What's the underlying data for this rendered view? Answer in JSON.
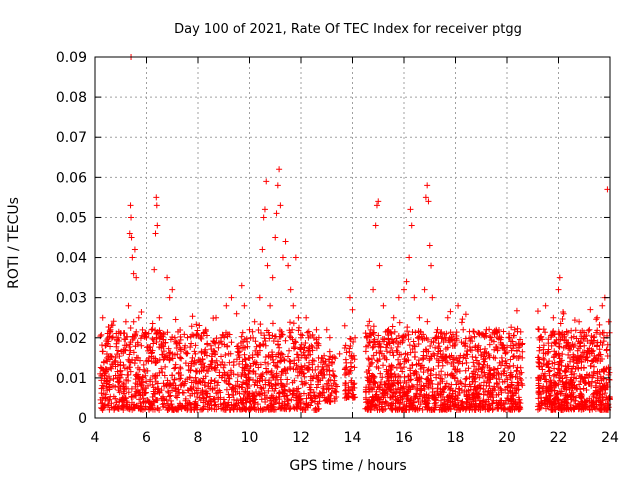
{
  "chart_data": {
    "type": "scatter",
    "title": "Day 100 of 2021, Rate Of TEC Index for receiver ptgg",
    "xlabel": "GPS time / hours",
    "ylabel": "ROTI / TECUs",
    "xlim": [
      4,
      24
    ],
    "ylim": [
      0,
      0.09
    ],
    "xticks": [
      4,
      6,
      8,
      10,
      12,
      14,
      16,
      18,
      20,
      22,
      24
    ],
    "yticks": [
      0,
      0.01,
      0.02,
      0.03,
      0.04,
      0.05,
      0.06,
      0.07,
      0.08,
      0.09
    ],
    "xtick_labels": [
      "4",
      "6",
      "8",
      "10",
      "12",
      "14",
      "16",
      "18",
      "20",
      "22",
      "24"
    ],
    "ytick_labels": [
      "0",
      "0.01",
      "0.02",
      "0.03",
      "0.04",
      "0.05",
      "0.06",
      "0.07",
      "0.08",
      "0.09"
    ],
    "grid": true,
    "marker": "plus",
    "color": "#ff0000",
    "points": [
      [
        4.2,
        0.011
      ],
      [
        4.3,
        0.025
      ],
      [
        4.35,
        0.005
      ],
      [
        4.4,
        0.018
      ],
      [
        4.5,
        0.012
      ],
      [
        4.6,
        0.022
      ],
      [
        4.7,
        0.008
      ],
      [
        4.8,
        0.015
      ],
      [
        4.9,
        0.02
      ],
      [
        5.0,
        0.01
      ],
      [
        5.1,
        0.017
      ],
      [
        5.2,
        0.024
      ],
      [
        5.3,
        0.028
      ],
      [
        5.35,
        0.046
      ],
      [
        5.38,
        0.053
      ],
      [
        5.4,
        0.05
      ],
      [
        5.42,
        0.045
      ],
      [
        5.45,
        0.04
      ],
      [
        5.5,
        0.036
      ],
      [
        5.55,
        0.042
      ],
      [
        5.6,
        0.035
      ],
      [
        5.4,
        0.09
      ],
      [
        5.7,
        0.025
      ],
      [
        5.8,
        0.018
      ],
      [
        5.9,
        0.012
      ],
      [
        6.0,
        0.02
      ],
      [
        6.1,
        0.015
      ],
      [
        6.2,
        0.022
      ],
      [
        6.3,
        0.037
      ],
      [
        6.35,
        0.046
      ],
      [
        6.38,
        0.055
      ],
      [
        6.4,
        0.053
      ],
      [
        6.42,
        0.048
      ],
      [
        6.5,
        0.025
      ],
      [
        6.6,
        0.018
      ],
      [
        6.8,
        0.035
      ],
      [
        6.9,
        0.03
      ],
      [
        7.0,
        0.032
      ],
      [
        7.1,
        0.02
      ],
      [
        7.3,
        0.015
      ],
      [
        7.5,
        0.018
      ],
      [
        7.7,
        0.012
      ],
      [
        7.9,
        0.016
      ],
      [
        8.1,
        0.02
      ],
      [
        8.3,
        0.022
      ],
      [
        8.5,
        0.018
      ],
      [
        8.7,
        0.025
      ],
      [
        8.9,
        0.02
      ],
      [
        9.1,
        0.028
      ],
      [
        9.3,
        0.03
      ],
      [
        9.5,
        0.026
      ],
      [
        9.7,
        0.033
      ],
      [
        9.8,
        0.028
      ],
      [
        10.0,
        0.022
      ],
      [
        10.2,
        0.024
      ],
      [
        10.4,
        0.03
      ],
      [
        10.5,
        0.042
      ],
      [
        10.55,
        0.05
      ],
      [
        10.6,
        0.052
      ],
      [
        10.65,
        0.059
      ],
      [
        10.7,
        0.038
      ],
      [
        10.8,
        0.028
      ],
      [
        10.9,
        0.035
      ],
      [
        11.0,
        0.045
      ],
      [
        11.05,
        0.051
      ],
      [
        11.1,
        0.058
      ],
      [
        11.15,
        0.062
      ],
      [
        11.2,
        0.053
      ],
      [
        11.3,
        0.04
      ],
      [
        11.4,
        0.044
      ],
      [
        11.5,
        0.038
      ],
      [
        11.6,
        0.032
      ],
      [
        11.7,
        0.028
      ],
      [
        11.8,
        0.04
      ],
      [
        11.9,
        0.025
      ],
      [
        12.0,
        0.02
      ],
      [
        12.2,
        0.025
      ],
      [
        12.4,
        0.018
      ],
      [
        12.6,
        0.022
      ],
      [
        12.8,
        0.015
      ],
      [
        13.0,
        0.022
      ],
      [
        13.2,
        0.014
      ],
      [
        13.5,
        0.016
      ],
      [
        13.7,
        0.023
      ],
      [
        13.9,
        0.03
      ],
      [
        14.0,
        0.027
      ],
      [
        14.1,
        0.02
      ],
      [
        14.6,
        0.023
      ],
      [
        14.8,
        0.032
      ],
      [
        14.9,
        0.048
      ],
      [
        14.95,
        0.053
      ],
      [
        15.0,
        0.054
      ],
      [
        15.05,
        0.038
      ],
      [
        15.2,
        0.028
      ],
      [
        15.4,
        0.022
      ],
      [
        15.6,
        0.025
      ],
      [
        15.8,
        0.03
      ],
      [
        16.0,
        0.032
      ],
      [
        16.1,
        0.034
      ],
      [
        16.2,
        0.04
      ],
      [
        16.25,
        0.052
      ],
      [
        16.3,
        0.048
      ],
      [
        16.4,
        0.03
      ],
      [
        16.6,
        0.025
      ],
      [
        16.8,
        0.032
      ],
      [
        16.85,
        0.055
      ],
      [
        16.9,
        0.058
      ],
      [
        16.95,
        0.054
      ],
      [
        17.0,
        0.043
      ],
      [
        17.05,
        0.038
      ],
      [
        17.1,
        0.03
      ],
      [
        17.3,
        0.022
      ],
      [
        17.5,
        0.02
      ],
      [
        17.7,
        0.025
      ],
      [
        17.9,
        0.018
      ],
      [
        18.1,
        0.028
      ],
      [
        18.3,
        0.022
      ],
      [
        18.6,
        0.02
      ],
      [
        18.9,
        0.018
      ],
      [
        19.2,
        0.022
      ],
      [
        19.5,
        0.017
      ],
      [
        19.8,
        0.015
      ],
      [
        20.1,
        0.02
      ],
      [
        20.3,
        0.022
      ],
      [
        20.5,
        0.018
      ],
      [
        21.3,
        0.02
      ],
      [
        21.5,
        0.028
      ],
      [
        21.8,
        0.025
      ],
      [
        22.0,
        0.032
      ],
      [
        22.05,
        0.035
      ],
      [
        22.2,
        0.026
      ],
      [
        22.5,
        0.02
      ],
      [
        22.8,
        0.024
      ],
      [
        23.0,
        0.018
      ],
      [
        23.2,
        0.022
      ],
      [
        23.5,
        0.025
      ],
      [
        23.7,
        0.028
      ],
      [
        23.8,
        0.03
      ],
      [
        23.9,
        0.057
      ],
      [
        23.95,
        0.024
      ]
    ],
    "dense_segments": [
      {
        "x_start": 4.2,
        "x_end": 12.7,
        "y_min": 0.002,
        "y_max": 0.022,
        "density": 1400
      },
      {
        "x_start": 12.7,
        "x_end": 13.4,
        "y_min": 0.004,
        "y_max": 0.016,
        "density": 80
      },
      {
        "x_start": 13.7,
        "x_end": 14.1,
        "y_min": 0.005,
        "y_max": 0.018,
        "density": 60
      },
      {
        "x_start": 14.5,
        "x_end": 20.6,
        "y_min": 0.002,
        "y_max": 0.022,
        "density": 1200
      },
      {
        "x_start": 21.2,
        "x_end": 24.0,
        "y_min": 0.002,
        "y_max": 0.022,
        "density": 650
      }
    ]
  }
}
